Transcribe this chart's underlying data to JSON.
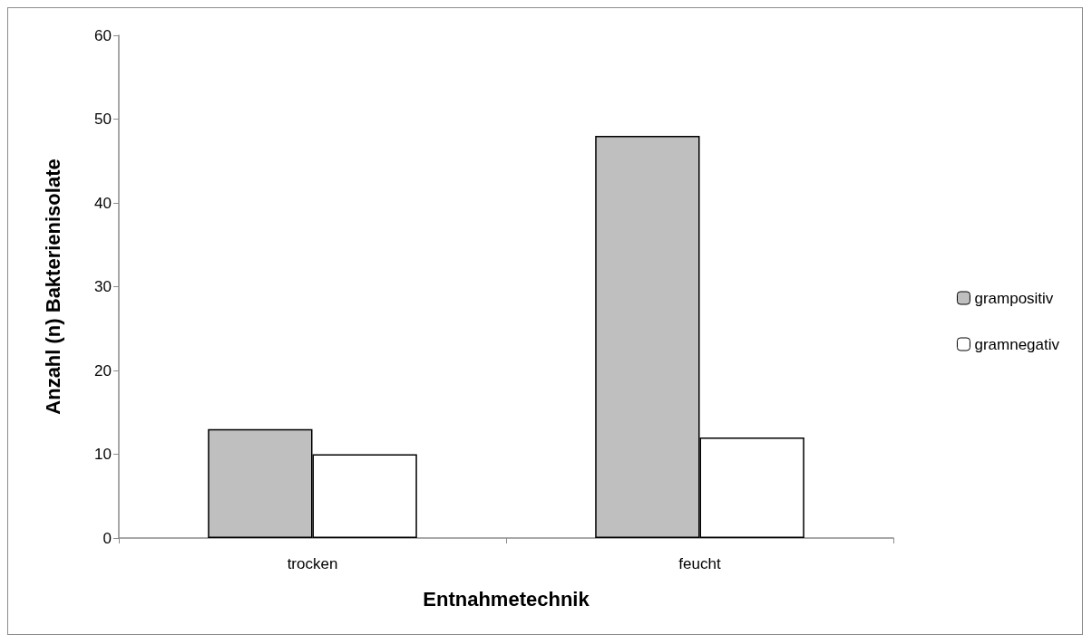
{
  "chart_data": {
    "type": "bar",
    "xlabel": "Entnahmetechnik",
    "ylabel": "Anzahl (n) Bakterienisolate",
    "categories": [
      "trocken",
      "feucht"
    ],
    "series": [
      {
        "name": "grampositiv",
        "color": "#bfbfbf",
        "values": [
          13,
          48
        ]
      },
      {
        "name": "gramnegativ",
        "color": "#ffffff",
        "values": [
          10,
          12
        ]
      }
    ],
    "ylim": [
      0,
      60
    ],
    "yticks": [
      0,
      10,
      20,
      30,
      40,
      50,
      60
    ],
    "grid": false,
    "legend": "right"
  }
}
